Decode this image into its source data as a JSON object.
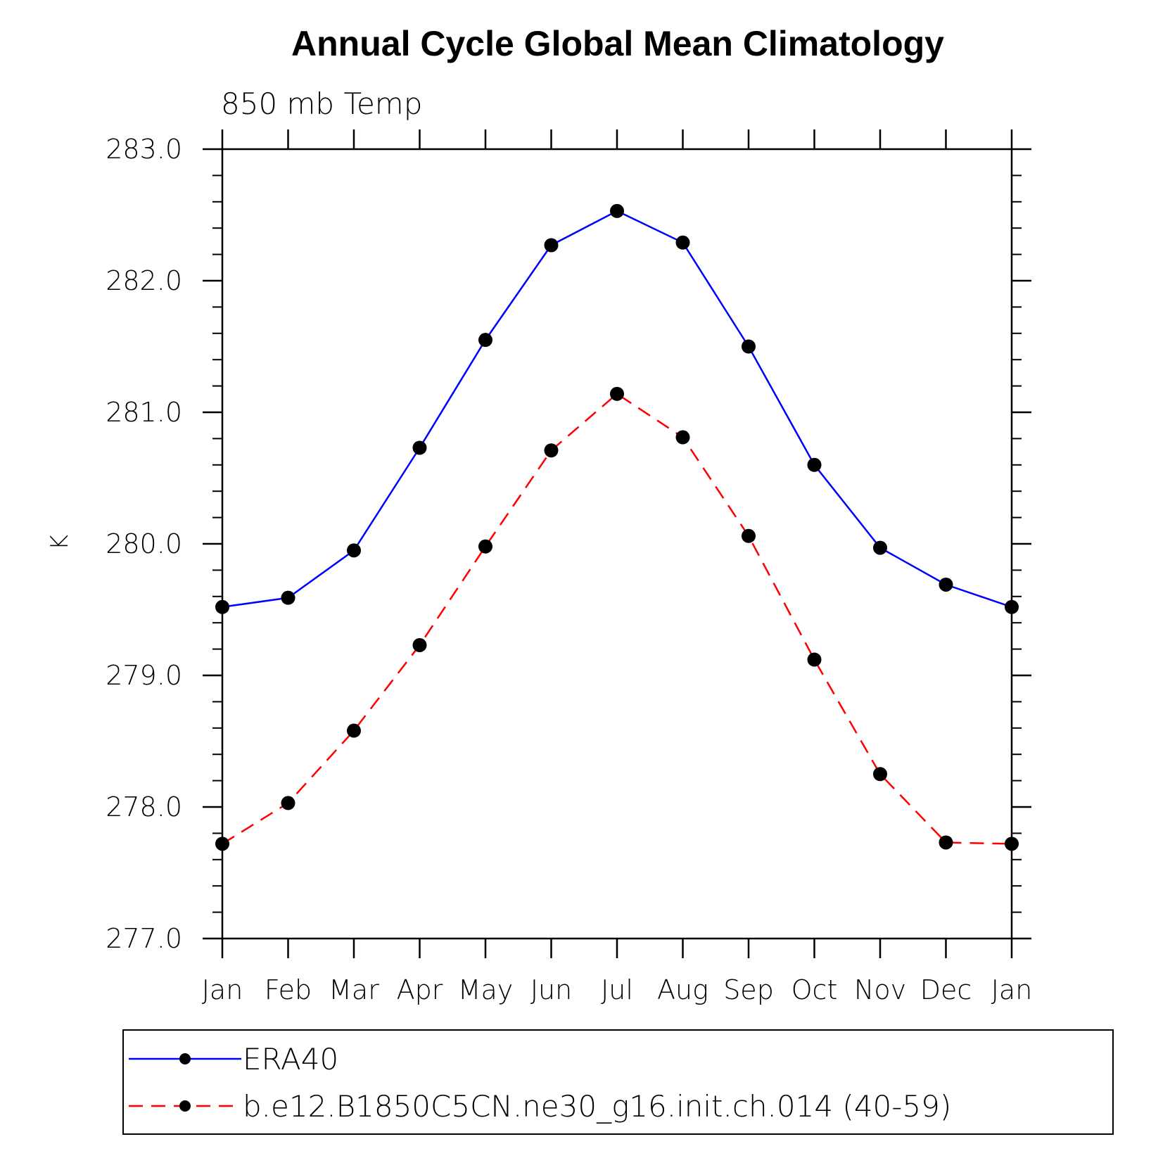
{
  "chart_data": {
    "type": "line",
    "title": "Annual Cycle Global Mean Climatology",
    "subtitle": "850 mb Temp",
    "xlabel": "",
    "ylabel": "K",
    "categories": [
      "Jan",
      "Feb",
      "Mar",
      "Apr",
      "May",
      "Jun",
      "Jul",
      "Aug",
      "Sep",
      "Oct",
      "Nov",
      "Dec",
      "Jan"
    ],
    "ylim": [
      277.0,
      283.0
    ],
    "y_major_ticks": [
      277.0,
      278.0,
      279.0,
      280.0,
      281.0,
      282.0,
      283.0
    ],
    "y_tick_labels": [
      "277.0",
      "278.0",
      "279.0",
      "280.0",
      "281.0",
      "282.0",
      "283.0"
    ],
    "y_minor_step": 0.2,
    "grid": false,
    "legend_position": "bottom",
    "series": [
      {
        "name": "ERA40",
        "color": "#0000ff",
        "dash": "solid",
        "marker": "filled-circle",
        "values": [
          279.52,
          279.59,
          279.95,
          280.73,
          281.55,
          282.27,
          282.53,
          282.29,
          281.5,
          280.6,
          279.97,
          279.69,
          279.52
        ]
      },
      {
        "name": "b.e12.B1850C5CN.ne30_g16.init.ch.014 (40-59)",
        "color": "#ff0000",
        "dash": "dashed",
        "marker": "filled-circle",
        "values": [
          277.72,
          278.03,
          278.58,
          279.23,
          279.98,
          280.71,
          281.14,
          280.81,
          280.06,
          279.12,
          278.25,
          277.73,
          277.72
        ]
      }
    ]
  }
}
